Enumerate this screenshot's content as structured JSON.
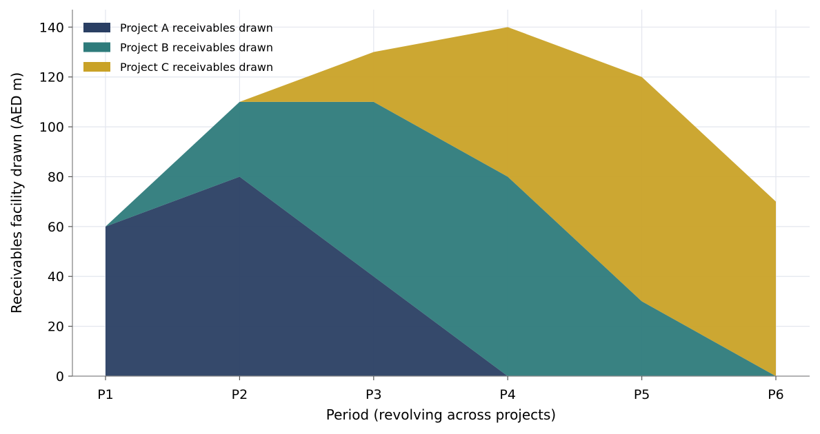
{
  "chart_data": {
    "type": "area",
    "stacked": true,
    "title": "",
    "xlabel": "Period (revolving across projects)",
    "ylabel": "Receivables facility drawn (AED m)",
    "categories": [
      "P1",
      "P2",
      "P3",
      "P4",
      "P5",
      "P6"
    ],
    "ylim": [
      0,
      147
    ],
    "yticks": [
      0,
      20,
      40,
      60,
      80,
      100,
      120,
      140
    ],
    "grid": true,
    "legend_position": "top-left",
    "series": [
      {
        "name": "Project A receivables drawn",
        "color": "#2a3f63",
        "values": [
          60,
          80,
          40,
          0,
          0,
          0
        ]
      },
      {
        "name": "Project B receivables drawn",
        "color": "#2e7b7b",
        "values": [
          0,
          30,
          70,
          80,
          30,
          0
        ]
      },
      {
        "name": "Project C receivables drawn",
        "color": "#c9a227",
        "values": [
          0,
          0,
          20,
          60,
          90,
          70
        ]
      }
    ]
  }
}
